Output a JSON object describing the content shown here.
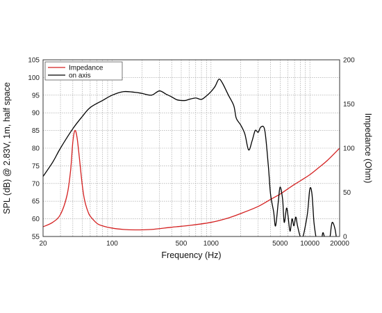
{
  "chart_data": {
    "type": "line",
    "xlabel": "Frequency (Hz)",
    "ylabel": "SPL (dB) @ 2.83V, 1m, half space",
    "y2label": "Impedance (Ohm)",
    "xscale": "log",
    "xlim": [
      20,
      20000
    ],
    "ylim": [
      55,
      105
    ],
    "y2lim": [
      0,
      200
    ],
    "grid": true,
    "legend_position": "top-left",
    "x_tick_labels": [
      "20",
      "100",
      "500",
      "1000",
      "5000",
      "10000",
      "20000"
    ],
    "x_ticks": [
      20,
      100,
      500,
      1000,
      5000,
      10000,
      20000
    ],
    "y_ticks": [
      55,
      60,
      65,
      70,
      75,
      80,
      85,
      90,
      95,
      100,
      105
    ],
    "y_tick_labels": [
      "55",
      "60",
      "65",
      "70",
      "75",
      "80",
      "85",
      "90",
      "95",
      "100",
      "105"
    ],
    "y2_ticks": [
      0,
      50,
      100,
      150,
      200
    ],
    "y2_tick_labels": [
      "0",
      "50",
      "100",
      "150",
      "200"
    ],
    "series": [
      {
        "name": "Impedance",
        "axis": "right",
        "color": "#d42020",
        "x": [
          20,
          25,
          30,
          35,
          38,
          40,
          42,
          44,
          46,
          48,
          50,
          52,
          54,
          57,
          60,
          70,
          80,
          100,
          130,
          170,
          250,
          400,
          600,
          1000,
          1500,
          2000,
          3000,
          4000,
          5000,
          6000,
          7000,
          8000,
          10000,
          12000,
          15000,
          20000
        ],
        "y": [
          11,
          16,
          25,
          47,
          75,
          107,
          120,
          113,
          95,
          75,
          57,
          44,
          36,
          28,
          23,
          15,
          12,
          9.5,
          8,
          7.5,
          8,
          10.5,
          12.5,
          16,
          21,
          26,
          34,
          42,
          48,
          54,
          59,
          63,
          70,
          77,
          86,
          100
        ]
      },
      {
        "name": "on axis",
        "axis": "left",
        "color": "#000000",
        "x": [
          20,
          25,
          30,
          40,
          50,
          60,
          80,
          100,
          130,
          170,
          200,
          250,
          300,
          350,
          400,
          450,
          500,
          550,
          600,
          700,
          800,
          900,
          1000,
          1100,
          1200,
          1300,
          1500,
          1700,
          1800,
          2000,
          2200,
          2400,
          2600,
          2800,
          3000,
          3200,
          3500,
          3800,
          4000,
          4300,
          4500,
          4800,
          5000,
          5300,
          5500,
          5800,
          6000,
          6300,
          6600,
          6900,
          7200,
          7500,
          8000,
          8500,
          9000,
          9500,
          10000,
          10500,
          11000,
          11500,
          12000,
          12500,
          13000,
          13500,
          14000,
          15000,
          16000,
          16500,
          17000,
          18000,
          19000,
          20000
        ],
        "y": [
          72,
          76,
          80,
          85.5,
          89,
          91.5,
          93.5,
          95,
          96,
          95.8,
          95.5,
          95,
          96.2,
          95.3,
          94.5,
          93.7,
          93.5,
          93.5,
          93.8,
          94.2,
          93.8,
          94.8,
          96,
          97.5,
          99.5,
          98.5,
          95,
          92,
          88.5,
          86.5,
          84,
          79.5,
          82,
          85,
          84.5,
          86,
          85,
          75,
          67,
          62,
          58,
          65,
          69,
          65.5,
          59,
          63,
          61,
          56.5,
          60,
          58,
          60.5,
          58,
          55,
          55,
          58,
          62,
          68.5,
          67,
          59,
          55,
          52,
          52,
          53,
          56,
          55,
          52,
          55,
          58,
          59,
          57,
          53,
          53
        ]
      }
    ]
  }
}
